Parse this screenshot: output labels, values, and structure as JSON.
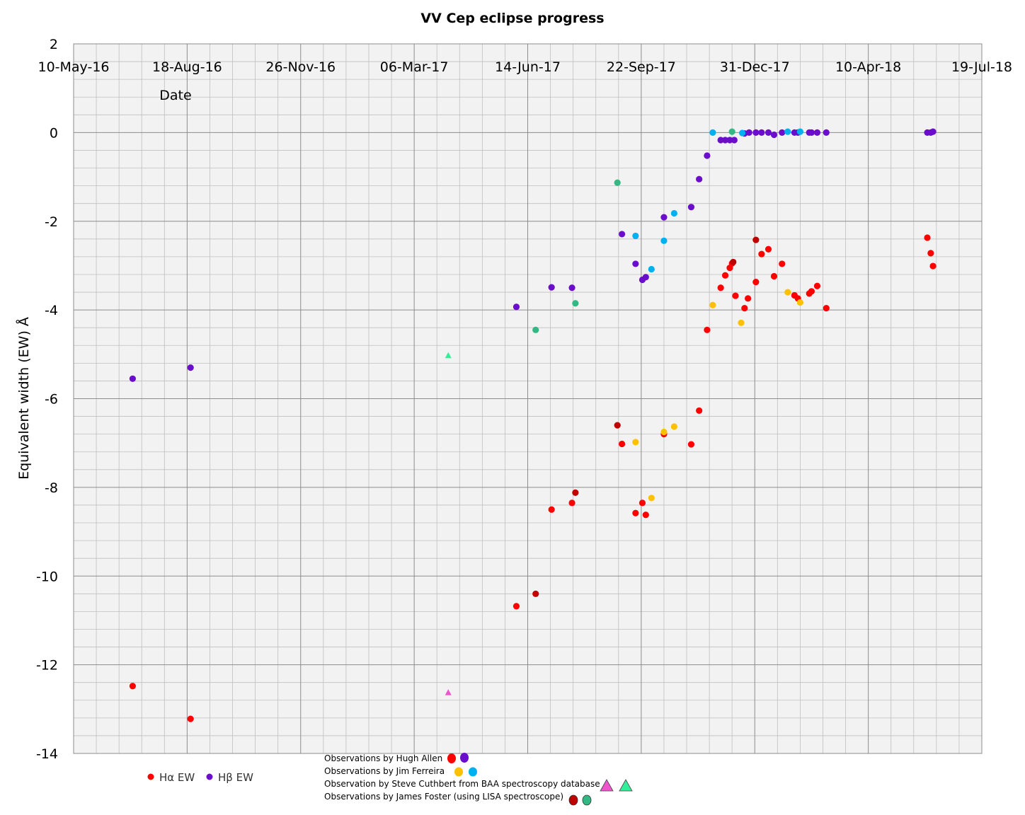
{
  "chart_data": {
    "type": "scatter",
    "title": "VV Cep eclipse progress",
    "xlabel": "Date",
    "ylabel": "Equivalent width (EW)  Å",
    "x_axis_position": "top",
    "x_ticks": [
      "10-May-16",
      "18-Aug-16",
      "26-Nov-16",
      "06-Mar-17",
      "14-Jun-17",
      "22-Sep-17",
      "31-Dec-17",
      "10-Apr-18",
      "19-Jul-18"
    ],
    "xlim": [
      "2016-05-10",
      "2018-07-19"
    ],
    "ylim": [
      -14,
      2
    ],
    "y_ticks": [
      2,
      0,
      -2,
      -4,
      -6,
      -8,
      -10,
      -12,
      -14
    ],
    "grid": true,
    "minor_grid": true,
    "colors": {
      "ha_allen": "#ff0000",
      "hb_allen": "#6a0dcc",
      "ha_ferreira": "#ffc000",
      "hb_ferreira": "#00b0f0",
      "ha_cuthbert": "#ee55cc",
      "hb_cuthbert": "#33ee99",
      "ha_foster": "#c00000",
      "hb_foster": "#33b883",
      "plot_bg": "#f2f2f2",
      "grid": "#bfbfbf"
    },
    "legend": {
      "placement": "bottom-left",
      "entries": [
        {
          "label": "Hα EW",
          "color": "#ff0000"
        },
        {
          "label": "Hβ EW",
          "color": "#6a0dcc"
        }
      ]
    },
    "observers": [
      {
        "label": "Observations by Hugh Allen",
        "marker": "circle",
        "colors": [
          "#ff0000",
          "#6a0dcc"
        ]
      },
      {
        "label": "Observations by Jim Ferreira",
        "marker": "circle",
        "colors": [
          "#ffc000",
          "#00b0f0"
        ]
      },
      {
        "label": "Observation by Steve Cuthbert from BAA spectroscopy database",
        "marker": "triangle",
        "colors": [
          "#ee55cc",
          "#33ee99"
        ]
      },
      {
        "label": "Observations by James Foster (using LISA spectroscope)",
        "marker": "circle",
        "colors": [
          "#c00000",
          "#33b883"
        ]
      }
    ],
    "series": [
      {
        "name": "Hα EW",
        "observer": "Hugh Allen",
        "color": "#ff0000",
        "marker": "circle",
        "points": [
          [
            "2016-07-01",
            -12.48
          ],
          [
            "2016-08-21",
            -13.22
          ],
          [
            "2017-06-04",
            -10.68
          ],
          [
            "2017-07-05",
            -8.5
          ],
          [
            "2017-07-23",
            -8.35
          ],
          [
            "2017-09-05",
            -7.02
          ],
          [
            "2017-09-17",
            -8.58
          ],
          [
            "2017-09-23",
            -8.35
          ],
          [
            "2017-09-26",
            -8.62
          ],
          [
            "2017-10-12",
            -6.8
          ],
          [
            "2017-11-05",
            -7.03
          ],
          [
            "2017-11-12",
            -6.27
          ],
          [
            "2017-11-19",
            -4.45
          ],
          [
            "2017-12-01",
            -3.5
          ],
          [
            "2017-12-05",
            -3.22
          ],
          [
            "2017-12-09",
            -3.05
          ],
          [
            "2017-12-11",
            -2.95
          ],
          [
            "2017-12-14",
            -3.68
          ],
          [
            "2017-12-22",
            -3.96
          ],
          [
            "2017-12-25",
            -3.74
          ],
          [
            "2018-01-01",
            -3.37
          ],
          [
            "2018-01-06",
            -2.74
          ],
          [
            "2018-01-12",
            -2.63
          ],
          [
            "2018-01-17",
            -3.24
          ],
          [
            "2018-01-24",
            -2.96
          ],
          [
            "2018-02-04",
            -3.67
          ],
          [
            "2018-02-07",
            -3.74
          ],
          [
            "2018-02-17",
            -3.63
          ],
          [
            "2018-02-19",
            -3.58
          ],
          [
            "2018-02-24",
            -3.46
          ],
          [
            "2018-03-04",
            -3.96
          ],
          [
            "2018-06-01",
            -2.37
          ],
          [
            "2018-06-04",
            -2.72
          ],
          [
            "2018-06-06",
            -3.01
          ]
        ]
      },
      {
        "name": "Hβ EW",
        "observer": "Hugh Allen",
        "color": "#6a0dcc",
        "marker": "circle",
        "points": [
          [
            "2016-07-01",
            -5.55
          ],
          [
            "2016-08-21",
            -5.3
          ],
          [
            "2017-06-04",
            -3.93
          ],
          [
            "2017-07-05",
            -3.49
          ],
          [
            "2017-07-23",
            -3.5
          ],
          [
            "2017-09-05",
            -2.29
          ],
          [
            "2017-09-17",
            -2.96
          ],
          [
            "2017-09-23",
            -3.32
          ],
          [
            "2017-09-26",
            -3.26
          ],
          [
            "2017-10-12",
            -1.91
          ],
          [
            "2017-11-05",
            -1.68
          ],
          [
            "2017-11-12",
            -1.05
          ],
          [
            "2017-11-19",
            -0.52
          ],
          [
            "2017-12-01",
            -0.17
          ],
          [
            "2017-12-05",
            -0.17
          ],
          [
            "2017-12-09",
            -0.17
          ],
          [
            "2017-12-13",
            -0.17
          ],
          [
            "2017-12-22",
            -0.02
          ],
          [
            "2017-12-26",
            0.0
          ],
          [
            "2018-01-01",
            0.0
          ],
          [
            "2018-01-06",
            0.0
          ],
          [
            "2018-01-12",
            0.0
          ],
          [
            "2018-01-17",
            -0.05
          ],
          [
            "2018-01-24",
            0.0
          ],
          [
            "2018-02-04",
            0.0
          ],
          [
            "2018-02-07",
            0.0
          ],
          [
            "2018-02-17",
            0.0
          ],
          [
            "2018-02-19",
            0.0
          ],
          [
            "2018-02-24",
            0.0
          ],
          [
            "2018-03-04",
            0.0
          ],
          [
            "2018-06-01",
            0.0
          ],
          [
            "2018-06-04",
            0.0
          ],
          [
            "2018-06-06",
            0.02
          ]
        ]
      },
      {
        "name": "Hα EW",
        "observer": "Jim Ferreira",
        "color": "#ffc000",
        "marker": "circle",
        "points": [
          [
            "2017-09-17",
            -6.98
          ],
          [
            "2017-10-01",
            -8.24
          ],
          [
            "2017-10-12",
            -6.75
          ],
          [
            "2017-10-21",
            -6.63
          ],
          [
            "2017-11-24",
            -3.89
          ],
          [
            "2017-12-19",
            -4.29
          ],
          [
            "2018-01-29",
            -3.6
          ],
          [
            "2018-02-09",
            -3.83
          ]
        ]
      },
      {
        "name": "Hβ EW",
        "observer": "Jim Ferreira",
        "color": "#00b0f0",
        "marker": "circle",
        "points": [
          [
            "2017-09-17",
            -2.33
          ],
          [
            "2017-10-01",
            -3.08
          ],
          [
            "2017-10-12",
            -2.44
          ],
          [
            "2017-10-21",
            -1.82
          ],
          [
            "2017-11-24",
            0.0
          ],
          [
            "2017-12-20",
            -0.01
          ],
          [
            "2018-01-29",
            0.02
          ],
          [
            "2018-02-09",
            0.02
          ]
        ]
      },
      {
        "name": "Hα EW",
        "observer": "Steve Cuthbert",
        "color": "#ee55cc",
        "marker": "triangle",
        "points": [
          [
            "2017-04-05",
            -12.63
          ]
        ]
      },
      {
        "name": "Hβ EW",
        "observer": "Steve Cuthbert",
        "color": "#33ee99",
        "marker": "triangle",
        "points": [
          [
            "2017-04-05",
            -5.03
          ]
        ]
      },
      {
        "name": "Hα EW",
        "observer": "James Foster",
        "color": "#c00000",
        "marker": "circle",
        "points": [
          [
            "2017-06-21",
            -10.4
          ],
          [
            "2017-07-26",
            -8.12
          ],
          [
            "2017-09-01",
            -6.6
          ],
          [
            "2017-12-12",
            -2.92
          ],
          [
            "2018-01-01",
            -2.42
          ]
        ]
      },
      {
        "name": "Hβ EW",
        "observer": "James Foster",
        "color": "#33b883",
        "marker": "circle",
        "points": [
          [
            "2017-06-21",
            -4.45
          ],
          [
            "2017-07-26",
            -3.85
          ],
          [
            "2017-09-01",
            -1.13
          ],
          [
            "2017-12-11",
            0.02
          ]
        ]
      }
    ]
  }
}
